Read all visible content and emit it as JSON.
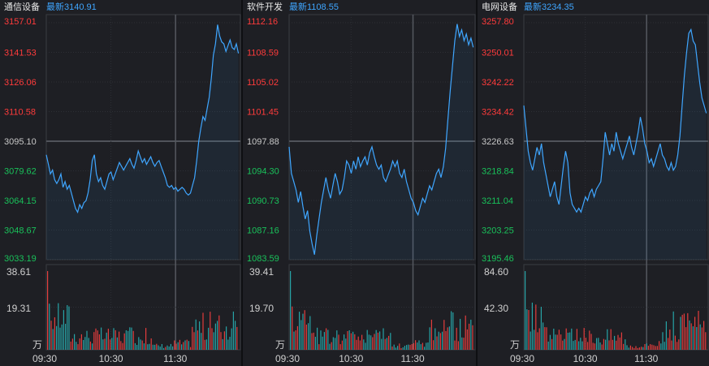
{
  "colors": {
    "up": "#ff3b3b",
    "down": "#19c15a",
    "neutral": "#c8c8c8",
    "line": "#3fa6ff",
    "volume_label": "#cfcfcf",
    "vol_up": "#e33d3d",
    "vol_down": "#27a3a6"
  },
  "panels": [
    {
      "name": "通信设备",
      "latest": "最新3140.91",
      "price_ticks": [
        "3157.01",
        "3141.53",
        "3126.06",
        "3110.58",
        "3095.10",
        "3079.62",
        "3064.15",
        "3048.67",
        "3033.19"
      ],
      "volume_ticks": [
        "38.61",
        "19.31",
        "万"
      ],
      "time_ticks": [
        "09:30",
        "10:30",
        "11:30"
      ],
      "series": [
        3088,
        3083,
        3078,
        3080,
        3075,
        3073,
        3075,
        3078,
        3071,
        3074,
        3070,
        3072,
        3068,
        3064,
        3060,
        3058,
        3062,
        3060,
        3063,
        3064,
        3068,
        3075,
        3085,
        3088,
        3078,
        3074,
        3076,
        3072,
        3070,
        3074,
        3078,
        3079,
        3075,
        3078,
        3081,
        3084,
        3082,
        3080,
        3082,
        3084,
        3086,
        3083,
        3081,
        3085,
        3090,
        3087,
        3084,
        3086,
        3083,
        3085,
        3087,
        3084,
        3082,
        3084,
        3085,
        3082,
        3079,
        3076,
        3072,
        3071,
        3072,
        3070,
        3071,
        3069,
        3070,
        3071,
        3070,
        3068,
        3067,
        3068,
        3072,
        3076,
        3085,
        3095,
        3102,
        3108,
        3106,
        3112,
        3118,
        3128,
        3140,
        3146,
        3156,
        3150,
        3147,
        3146,
        3142,
        3145,
        3148,
        3144,
        3143,
        3146,
        3141
      ]
    },
    {
      "name": "软件开发",
      "latest": "最新1108.55",
      "price_ticks": [
        "1112.16",
        "1108.59",
        "1105.02",
        "1101.45",
        "1097.88",
        "1094.30",
        "1090.73",
        "1087.16",
        "1083.59"
      ],
      "volume_ticks": [
        "39.41",
        "19.70",
        "万"
      ],
      "time_ticks": [
        "09:30",
        "10:30",
        "11:30"
      ],
      "series": [
        1097.2,
        1094.0,
        1093.0,
        1092.0,
        1090.5,
        1091.8,
        1090.0,
        1088.5,
        1089.5,
        1087.0,
        1085.5,
        1084.2,
        1086.5,
        1088.5,
        1090.5,
        1092.0,
        1093.5,
        1092.0,
        1091.0,
        1092.5,
        1094.0,
        1093.0,
        1091.5,
        1092.0,
        1093.5,
        1095.5,
        1095.0,
        1094.0,
        1095.5,
        1094.5,
        1096.0,
        1094.8,
        1095.5,
        1096.0,
        1095.0,
        1096.5,
        1097.2,
        1096.0,
        1095.0,
        1094.5,
        1095.0,
        1093.5,
        1093.0,
        1093.8,
        1094.5,
        1095.5,
        1094.8,
        1095.5,
        1094.0,
        1093.5,
        1094.5,
        1093.0,
        1092.0,
        1091.0,
        1090.5,
        1089.5,
        1089.0,
        1090.0,
        1091.0,
        1090.5,
        1091.5,
        1092.5,
        1092.0,
        1093.0,
        1094.0,
        1094.5,
        1093.5,
        1094.8,
        1097.0,
        1100.5,
        1104.0,
        1107.0,
        1110.0,
        1112.0,
        1110.5,
        1111.3,
        1110.0,
        1110.8,
        1109.5,
        1110.3,
        1109.2
      ]
    },
    {
      "name": "电网设备",
      "latest": "最新3234.35",
      "price_ticks": [
        "3257.80",
        "3250.01",
        "3242.22",
        "3234.42",
        "3226.63",
        "3218.84",
        "3211.04",
        "3203.25",
        "3195.46"
      ],
      "volume_ticks": [
        "84.60",
        "42.30",
        "万"
      ],
      "time_ticks": [
        "09:30",
        "10:30",
        "11:30"
      ],
      "series": [
        3236,
        3230,
        3224,
        3221,
        3219,
        3222,
        3225,
        3223,
        3226,
        3221,
        3218,
        3215,
        3212,
        3214,
        3216,
        3212,
        3210,
        3215,
        3220,
        3224,
        3221,
        3213,
        3210,
        3209,
        3208,
        3209,
        3208,
        3210,
        3212,
        3211,
        3213,
        3214,
        3212,
        3214,
        3215,
        3216,
        3222,
        3229,
        3226,
        3223,
        3226,
        3224,
        3229,
        3226,
        3224,
        3222,
        3224,
        3226,
        3228,
        3225,
        3223,
        3226,
        3229,
        3233,
        3230,
        3226,
        3224,
        3221,
        3222,
        3220,
        3222,
        3224,
        3226,
        3223,
        3222,
        3220,
        3219,
        3221,
        3219,
        3220,
        3223,
        3228,
        3236,
        3244,
        3250,
        3255,
        3256,
        3253,
        3252,
        3247,
        3242,
        3238,
        3236,
        3234
      ]
    }
  ]
}
